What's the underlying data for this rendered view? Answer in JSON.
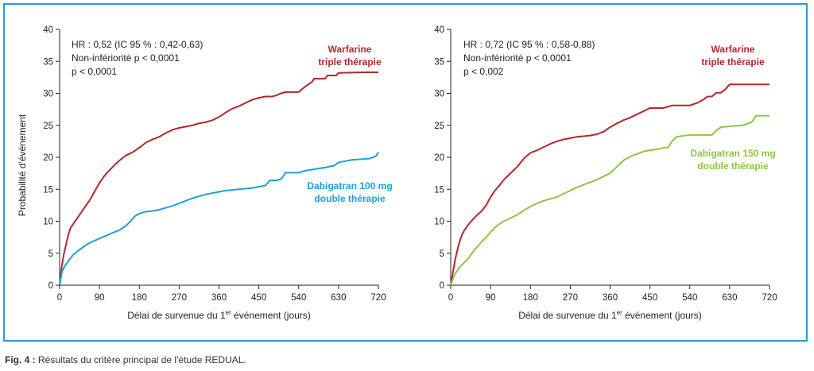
{
  "caption": {
    "prefix": "Fig. 4 :",
    "text": "Résultats du critère principal de l'étude REDUAL."
  },
  "colors": {
    "warfarin": "#b5262c",
    "dabigatran_100": "#1da1d6",
    "dabigatran_150": "#8dc63f",
    "frame": "#2c9ad6",
    "axis": "#222222"
  },
  "chart_data": [
    {
      "type": "line",
      "title": "",
      "ylabel": "Probabilité d'événement",
      "xlabel": {
        "base": "Délai de survenue du 1",
        "sup": "er",
        "rest": " événement (jours)"
      },
      "xlim": [
        0,
        720
      ],
      "ylim": [
        0,
        40
      ],
      "xticks": [
        0,
        90,
        180,
        270,
        360,
        450,
        540,
        630,
        720
      ],
      "yticks": [
        0,
        5,
        10,
        15,
        20,
        25,
        30,
        35,
        40
      ],
      "grid": false,
      "stats": [
        "HR : 0,52 (IC 95 % : 0,42-0,63)",
        "Non-infériorité p < 0,0001",
        "p < 0,0001"
      ],
      "series": [
        {
          "name": [
            "Warfarine",
            "triple thérapie"
          ],
          "color_key": "warfarin",
          "x": [
            0,
            5,
            10,
            15,
            20,
            25,
            30,
            40,
            50,
            60,
            70,
            80,
            90,
            100,
            110,
            120,
            135,
            150,
            165,
            180,
            195,
            210,
            225,
            240,
            255,
            270,
            285,
            300,
            315,
            330,
            345,
            360,
            375,
            390,
            405,
            420,
            435,
            450,
            465,
            480,
            490,
            500,
            510,
            520,
            530,
            540,
            550,
            560,
            570,
            575,
            600,
            605,
            625,
            630,
            690,
            720
          ],
          "y": [
            0,
            3,
            5,
            6.5,
            8,
            9,
            9.5,
            10.5,
            11.5,
            12.5,
            13.5,
            14.8,
            16,
            17,
            17.8,
            18.5,
            19.5,
            20.3,
            20.8,
            21.5,
            22.3,
            22.8,
            23.2,
            23.8,
            24.3,
            24.6,
            24.8,
            25.0,
            25.3,
            25.5,
            25.8,
            26.3,
            27.0,
            27.6,
            28.0,
            28.5,
            29.0,
            29.3,
            29.5,
            29.5,
            29.7,
            30.0,
            30.2,
            30.2,
            30.2,
            30.2,
            30.8,
            31.3,
            31.8,
            32.3,
            32.3,
            32.8,
            32.8,
            33.2,
            33.3,
            33.3
          ]
        },
        {
          "name": [
            "Dabigatran 100 mg",
            "double thérapie"
          ],
          "color_key": "dabigatran_100",
          "x": [
            0,
            5,
            10,
            20,
            30,
            40,
            50,
            60,
            70,
            80,
            90,
            100,
            110,
            120,
            135,
            150,
            160,
            170,
            180,
            195,
            210,
            225,
            240,
            255,
            270,
            285,
            300,
            315,
            330,
            345,
            360,
            375,
            390,
            405,
            420,
            435,
            450,
            465,
            470,
            475,
            490,
            500,
            505,
            510,
            540,
            555,
            580,
            600,
            620,
            630,
            660,
            700,
            715,
            720
          ],
          "y": [
            0,
            2,
            2.8,
            3.8,
            4.7,
            5.3,
            5.8,
            6.3,
            6.7,
            7.0,
            7.3,
            7.6,
            7.9,
            8.2,
            8.6,
            9.3,
            10.0,
            10.8,
            11.2,
            11.5,
            11.6,
            11.8,
            12.1,
            12.4,
            12.8,
            13.2,
            13.6,
            13.9,
            14.2,
            14.4,
            14.6,
            14.8,
            14.9,
            15.0,
            15.1,
            15.2,
            15.4,
            15.6,
            16.0,
            16.4,
            16.4,
            16.6,
            17.0,
            17.6,
            17.6,
            17.9,
            18.2,
            18.4,
            18.7,
            19.2,
            19.6,
            19.8,
            20.2,
            20.8
          ]
        }
      ]
    },
    {
      "type": "line",
      "title": "",
      "ylabel": "",
      "xlabel": {
        "base": "Délai de survenue du 1",
        "sup": "er",
        "rest": " événement (jours)"
      },
      "xlim": [
        0,
        720
      ],
      "ylim": [
        0,
        40
      ],
      "xticks": [
        0,
        90,
        180,
        270,
        360,
        450,
        540,
        630,
        720
      ],
      "yticks": [
        0,
        5,
        10,
        15,
        20,
        25,
        30,
        35,
        40
      ],
      "grid": false,
      "stats": [
        "HR : 0,72 (IC 95 % : 0,58-0,88)",
        "Non-infériorité p < 0,0001",
        "p < 0,002"
      ],
      "series": [
        {
          "name": [
            "Warfarine",
            "triple thérapie"
          ],
          "color_key": "warfarin",
          "x": [
            0,
            5,
            10,
            15,
            20,
            25,
            30,
            40,
            50,
            60,
            70,
            80,
            90,
            100,
            110,
            120,
            135,
            150,
            165,
            180,
            195,
            210,
            225,
            240,
            255,
            270,
            285,
            300,
            315,
            330,
            345,
            360,
            375,
            390,
            405,
            420,
            435,
            450,
            470,
            480,
            500,
            510,
            520,
            530,
            540,
            560,
            570,
            580,
            590,
            600,
            610,
            620,
            625,
            630,
            660,
            690,
            720
          ],
          "y": [
            0,
            2,
            4,
            5.5,
            6.8,
            7.8,
            8.5,
            9.5,
            10.3,
            11.0,
            11.6,
            12.5,
            13.8,
            14.8,
            15.6,
            16.5,
            17.5,
            18.5,
            19.8,
            20.7,
            21.1,
            21.6,
            22.1,
            22.5,
            22.8,
            23.0,
            23.2,
            23.3,
            23.4,
            23.6,
            24.0,
            24.7,
            25.3,
            25.8,
            26.2,
            26.7,
            27.2,
            27.7,
            27.7,
            27.7,
            28.1,
            28.1,
            28.1,
            28.1,
            28.1,
            28.6,
            29.0,
            29.5,
            29.5,
            30.1,
            30.1,
            30.6,
            31.0,
            31.4,
            31.4,
            31.4,
            31.4
          ]
        },
        {
          "name": [
            "Dabigatran 150 mg",
            "double thérapie"
          ],
          "color_key": "dabigatran_150",
          "x": [
            0,
            5,
            10,
            20,
            30,
            40,
            50,
            60,
            70,
            80,
            90,
            100,
            110,
            120,
            135,
            150,
            165,
            180,
            195,
            210,
            225,
            240,
            255,
            270,
            285,
            300,
            315,
            330,
            345,
            360,
            375,
            390,
            405,
            420,
            435,
            450,
            470,
            480,
            490,
            500,
            510,
            540,
            560,
            570,
            590,
            600,
            610,
            640,
            660,
            680,
            690,
            720
          ],
          "y": [
            0,
            1,
            1.8,
            2.8,
            3.5,
            4.2,
            5.2,
            6.0,
            6.8,
            7.5,
            8.3,
            9.0,
            9.6,
            10.0,
            10.5,
            11.0,
            11.7,
            12.3,
            12.8,
            13.2,
            13.5,
            13.8,
            14.3,
            14.8,
            15.3,
            15.7,
            16.1,
            16.5,
            17.0,
            17.5,
            18.5,
            19.5,
            20.1,
            20.5,
            20.9,
            21.1,
            21.3,
            21.5,
            21.5,
            22.5,
            23.2,
            23.5,
            23.5,
            23.5,
            23.5,
            24.2,
            24.7,
            24.9,
            25.0,
            25.5,
            26.5,
            26.5
          ]
        }
      ]
    }
  ]
}
